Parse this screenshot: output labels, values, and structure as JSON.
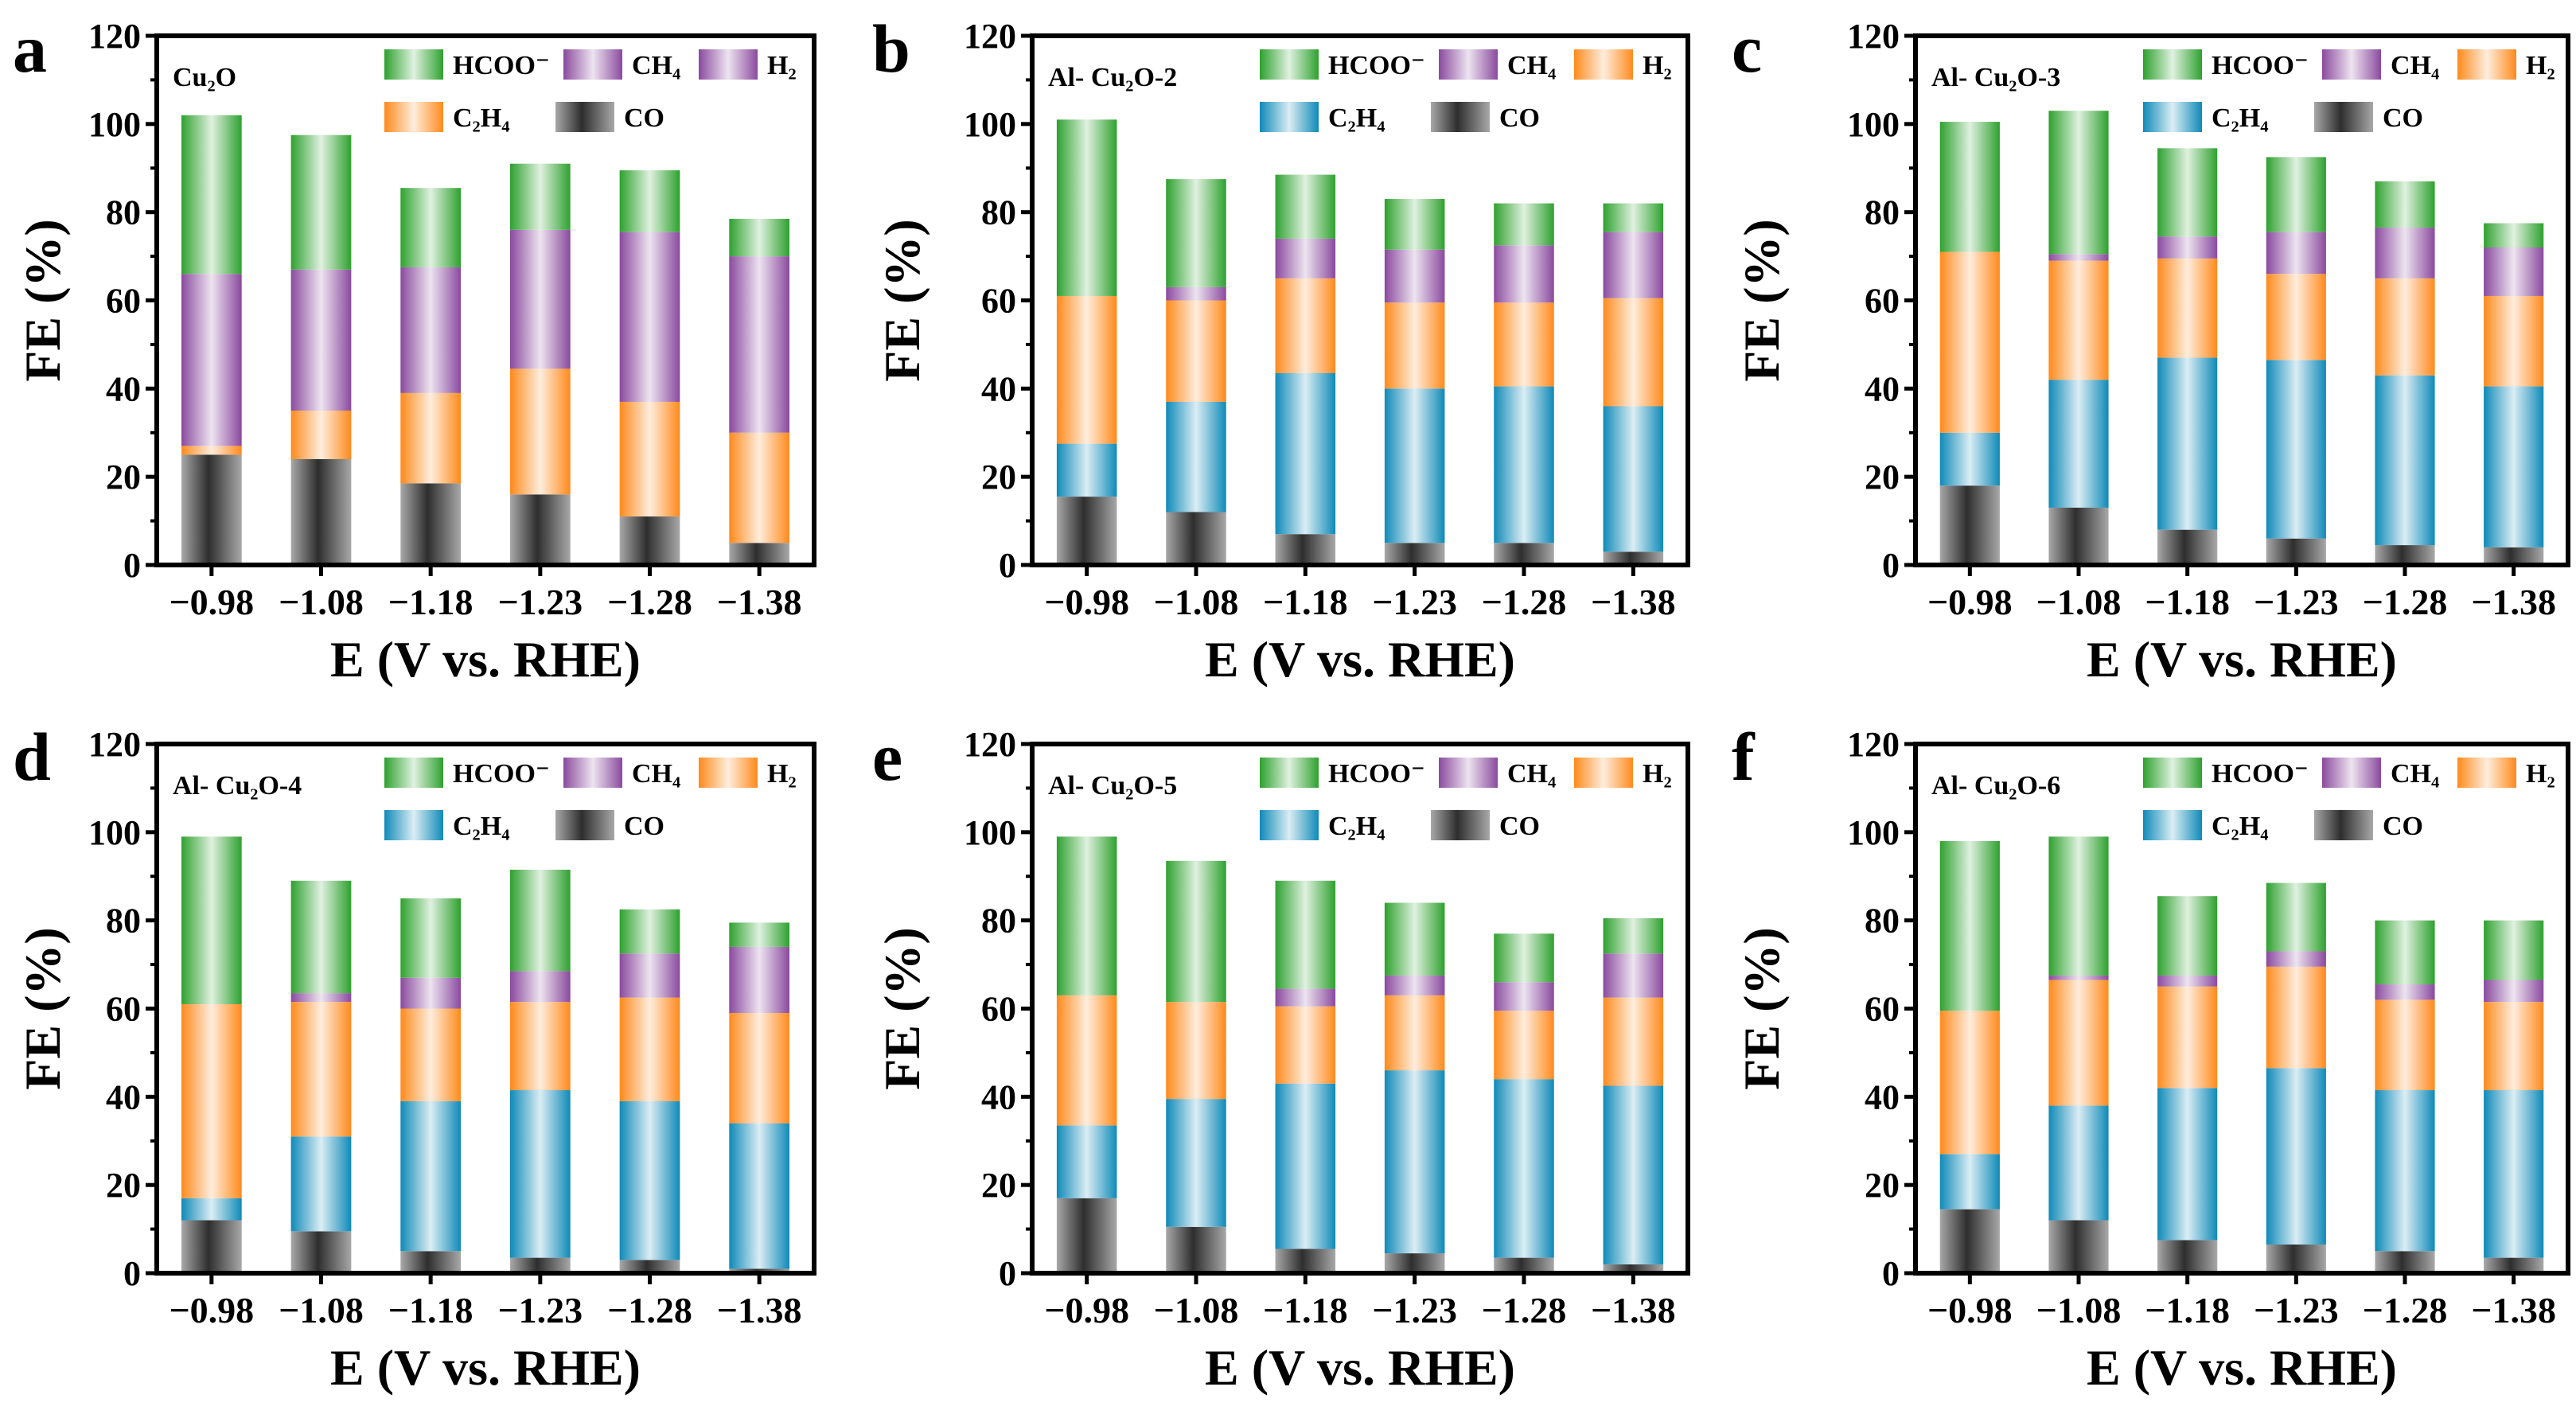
{
  "chart_data": [
    {
      "type": "bar",
      "stacked": true,
      "panel_letter": "a",
      "sample_label": "Cu₂O",
      "xlabel": "E (V vs. RHE)",
      "ylabel": "FE (%)",
      "ylim": [
        0,
        120
      ],
      "yticks": [
        "0",
        "20",
        "40",
        "60",
        "80",
        "100",
        "120"
      ],
      "categories": [
        "−0.98",
        "−1.08",
        "−1.18",
        "−1.23",
        "−1.28",
        "−1.38"
      ],
      "legend": [
        "HCOO⁻",
        "CH₄",
        "H₂",
        "C₂H₄",
        "CO"
      ],
      "series": [
        {
          "name": "CO",
          "color": "#4a4a4a",
          "values": [
            25,
            24,
            18.5,
            16,
            11,
            5
          ]
        },
        {
          "name": "C₂H₄",
          "color": "#ff8a1c",
          "values": [
            2,
            11,
            20.5,
            28.5,
            26,
            25
          ]
        },
        {
          "name": "H₂",
          "color": "#8a4a9e",
          "values": [
            39,
            32,
            28.5,
            31.5,
            38.5,
            40
          ]
        },
        {
          "name": "CH₄",
          "color": "#8a4a9e",
          "values": [
            0,
            0,
            0,
            0,
            0,
            0
          ]
        },
        {
          "name": "HCOO⁻",
          "color": "#2ea12e",
          "values": [
            36,
            30.5,
            18,
            15,
            14,
            8.5
          ]
        }
      ]
    },
    {
      "type": "bar",
      "stacked": true,
      "panel_letter": "b",
      "sample_label": "Al- Cu₂O-2",
      "xlabel": "E (V vs. RHE)",
      "ylabel": "FE (%)",
      "ylim": [
        0,
        120
      ],
      "yticks": [
        "0",
        "20",
        "40",
        "60",
        "80",
        "100",
        "120"
      ],
      "categories": [
        "−0.98",
        "−1.08",
        "−1.18",
        "−1.23",
        "−1.28",
        "−1.38"
      ],
      "legend": [
        "HCOO⁻",
        "CH₄",
        "H₂",
        "C₂H₄",
        "CO"
      ],
      "series": [
        {
          "name": "CO",
          "color": "#4a4a4a",
          "values": [
            15.5,
            12,
            7,
            5,
            5,
            3
          ]
        },
        {
          "name": "C₂H₄",
          "color": "#0f8ab8",
          "values": [
            12,
            25,
            36.5,
            35,
            35.5,
            33
          ]
        },
        {
          "name": "H₂",
          "color": "#ff8a1c",
          "values": [
            33.5,
            23,
            21.5,
            19.5,
            19,
            24.5
          ]
        },
        {
          "name": "CH₄",
          "color": "#8a4a9e",
          "values": [
            0,
            3,
            9,
            12,
            13,
            15
          ]
        },
        {
          "name": "HCOO⁻",
          "color": "#2ea12e",
          "values": [
            40,
            24.5,
            14.5,
            11.5,
            9.5,
            6.5
          ]
        }
      ]
    },
    {
      "type": "bar",
      "stacked": true,
      "panel_letter": "c",
      "sample_label": "Al- Cu₂O-3",
      "xlabel": "E (V vs. RHE)",
      "ylabel": "FE (%)",
      "ylim": [
        0,
        120
      ],
      "yticks": [
        "0",
        "20",
        "40",
        "60",
        "80",
        "100",
        "120"
      ],
      "categories": [
        "−0.98",
        "−1.08",
        "−1.18",
        "−1.23",
        "−1.28",
        "−1.38"
      ],
      "legend": [
        "HCOO⁻",
        "CH₄",
        "H₂",
        "C₂H₄",
        "CO"
      ],
      "series": [
        {
          "name": "CO",
          "color": "#4a4a4a",
          "values": [
            18,
            13,
            8,
            6,
            4.5,
            4
          ]
        },
        {
          "name": "C₂H₄",
          "color": "#0f8ab8",
          "values": [
            12,
            29,
            39,
            40.5,
            38.5,
            36.5
          ]
        },
        {
          "name": "H₂",
          "color": "#ff8a1c",
          "values": [
            41,
            27,
            22.5,
            19.5,
            22,
            20.5
          ]
        },
        {
          "name": "CH₄",
          "color": "#8a4a9e",
          "values": [
            0,
            1.5,
            5,
            9.5,
            11.5,
            11
          ]
        },
        {
          "name": "HCOO⁻",
          "color": "#2ea12e",
          "values": [
            29.5,
            32.5,
            20,
            17,
            10.5,
            5.5
          ]
        }
      ]
    },
    {
      "type": "bar",
      "stacked": true,
      "panel_letter": "d",
      "sample_label": "Al- Cu₂O-4",
      "xlabel": "E (V vs. RHE)",
      "ylabel": "FE (%)",
      "ylim": [
        0,
        120
      ],
      "yticks": [
        "0",
        "20",
        "40",
        "60",
        "80",
        "100",
        "120"
      ],
      "categories": [
        "−0.98",
        "−1.08",
        "−1.18",
        "−1.23",
        "−1.28",
        "−1.38"
      ],
      "legend": [
        "HCOO⁻",
        "CH₄",
        "H₂",
        "C₂H₄",
        "CO"
      ],
      "series": [
        {
          "name": "CO",
          "color": "#4a4a4a",
          "values": [
            12,
            9.5,
            5,
            3.5,
            3,
            1
          ]
        },
        {
          "name": "C₂H₄",
          "color": "#0f8ab8",
          "values": [
            5,
            21.5,
            34,
            38,
            36,
            33
          ]
        },
        {
          "name": "H₂",
          "color": "#ff8a1c",
          "values": [
            44,
            30.5,
            21,
            20,
            23.5,
            25
          ]
        },
        {
          "name": "CH₄",
          "color": "#8a4a9e",
          "values": [
            0,
            2,
            7,
            7,
            10,
            15
          ]
        },
        {
          "name": "HCOO⁻",
          "color": "#2ea12e",
          "values": [
            38,
            25.5,
            18,
            23,
            10,
            5.5
          ]
        }
      ]
    },
    {
      "type": "bar",
      "stacked": true,
      "panel_letter": "e",
      "sample_label": "Al- Cu₂O-5",
      "xlabel": "E (V vs. RHE)",
      "ylabel": "FE (%)",
      "ylim": [
        0,
        120
      ],
      "yticks": [
        "0",
        "20",
        "40",
        "60",
        "80",
        "100",
        "120"
      ],
      "categories": [
        "−0.98",
        "−1.08",
        "−1.18",
        "−1.23",
        "−1.28",
        "−1.38"
      ],
      "legend": [
        "HCOO⁻",
        "CH₄",
        "H₂",
        "C₂H₄",
        "CO"
      ],
      "series": [
        {
          "name": "CO",
          "color": "#4a4a4a",
          "values": [
            17,
            10.5,
            5.5,
            4.5,
            3.5,
            2
          ]
        },
        {
          "name": "C₂H₄",
          "color": "#0f8ab8",
          "values": [
            16.5,
            29,
            37.5,
            41.5,
            40.5,
            40.5
          ]
        },
        {
          "name": "H₂",
          "color": "#ff8a1c",
          "values": [
            29.5,
            22,
            17.5,
            17,
            15.5,
            20
          ]
        },
        {
          "name": "CH₄",
          "color": "#8a4a9e",
          "values": [
            0,
            0,
            4,
            4.5,
            6.5,
            10
          ]
        },
        {
          "name": "HCOO⁻",
          "color": "#2ea12e",
          "values": [
            36,
            32,
            24.5,
            16.5,
            11,
            8
          ]
        }
      ]
    },
    {
      "type": "bar",
      "stacked": true,
      "panel_letter": "f",
      "sample_label": "Al- Cu₂O-6",
      "xlabel": "E (V vs. RHE)",
      "ylabel": "FE (%)",
      "ylim": [
        0,
        120
      ],
      "yticks": [
        "0",
        "20",
        "40",
        "60",
        "80",
        "100",
        "120"
      ],
      "categories": [
        "−0.98",
        "−1.08",
        "−1.18",
        "−1.23",
        "−1.28",
        "−1.38"
      ],
      "legend": [
        "HCOO⁻",
        "CH₄",
        "H₂",
        "C₂H₄",
        "CO"
      ],
      "series": [
        {
          "name": "CO",
          "color": "#4a4a4a",
          "values": [
            14.5,
            12,
            7.5,
            6.5,
            5,
            3.5
          ]
        },
        {
          "name": "C₂H₄",
          "color": "#0f8ab8",
          "values": [
            12.5,
            26,
            34.5,
            40,
            36.5,
            38
          ]
        },
        {
          "name": "H₂",
          "color": "#ff8a1c",
          "values": [
            32.5,
            28.5,
            23,
            23,
            20.5,
            20
          ]
        },
        {
          "name": "CH₄",
          "color": "#8a4a9e",
          "values": [
            0,
            1,
            2.5,
            3.5,
            3.5,
            5
          ]
        },
        {
          "name": "HCOO⁻",
          "color": "#2ea12e",
          "values": [
            38.5,
            31.5,
            18,
            15.5,
            14.5,
            13.5
          ]
        }
      ]
    }
  ]
}
